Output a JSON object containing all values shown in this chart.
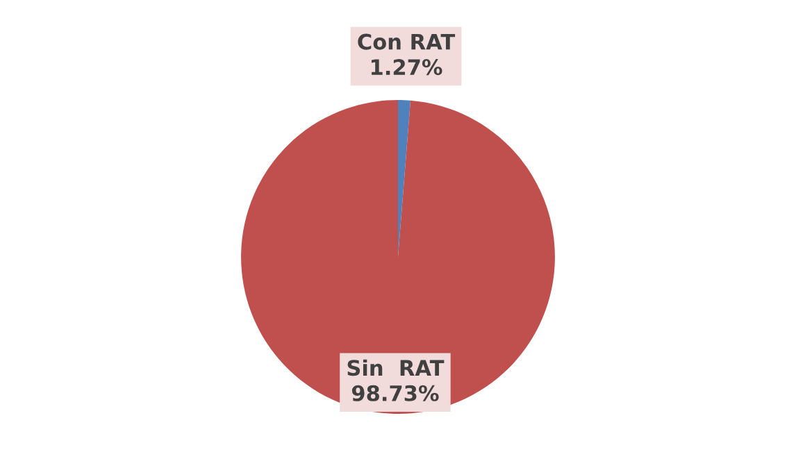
{
  "chart_data": {
    "type": "pie",
    "categories": [
      "Con RAT",
      "Sin  RAT"
    ],
    "values": [
      1.27,
      98.73
    ],
    "colors": [
      "#4f81bd",
      "#c0504d"
    ],
    "value_labels": [
      "1.27%",
      "98.73%"
    ],
    "legend": false
  }
}
